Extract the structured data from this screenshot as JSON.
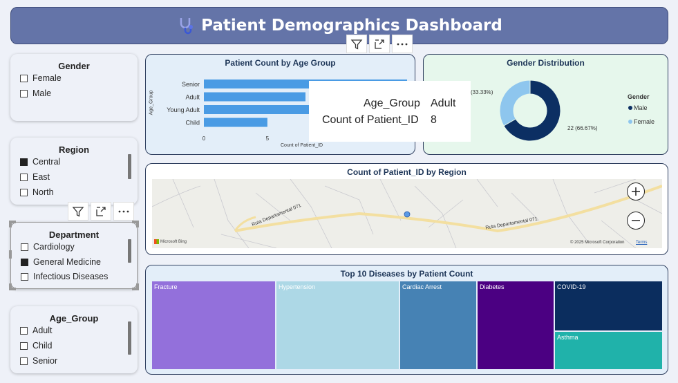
{
  "header": {
    "title": "Patient Demographics Dashboard",
    "icon": "stethoscope-icon"
  },
  "slicers": {
    "gender": {
      "title": "Gender",
      "items": [
        {
          "label": "Female",
          "checked": false
        },
        {
          "label": "Male",
          "checked": false
        }
      ]
    },
    "region": {
      "title": "Region",
      "items": [
        {
          "label": "Central",
          "checked": true
        },
        {
          "label": "East",
          "checked": false
        },
        {
          "label": "North",
          "checked": false
        }
      ]
    },
    "department": {
      "title": "Department",
      "items": [
        {
          "label": "Cardiology",
          "checked": false
        },
        {
          "label": "General Medicine",
          "checked": true
        },
        {
          "label": "Infectious Diseases",
          "checked": false
        }
      ]
    },
    "age_group": {
      "title": "Age_Group",
      "items": [
        {
          "label": "Adult",
          "checked": false
        },
        {
          "label": "Child",
          "checked": false
        },
        {
          "label": "Senior",
          "checked": false
        }
      ]
    }
  },
  "bar_chart": {
    "title": "Patient Count by Age Group",
    "xlabel": "Count of Patient_ID",
    "ylabel": "Age_Group",
    "ticks": [
      "0",
      "5"
    ]
  },
  "donut_chart": {
    "title": "Gender Distribution",
    "legend_title": "Gender",
    "label_female": "(33.33%)",
    "label_male": "22 (66.67%)",
    "legend": [
      "Male",
      "Female"
    ]
  },
  "tooltip": {
    "key1": "Age_Group",
    "val1": "Adult",
    "key2": "Count of Patient_ID",
    "val2": "8"
  },
  "map": {
    "title": "Count of Patient_ID by Region",
    "road1": "Ruta Departamental 071",
    "road2": "Ruta Departamental 071",
    "bing": "Microsoft Bing",
    "copyright": "© 2025 Microsoft Corporation",
    "terms": "Terms"
  },
  "treemap": {
    "title": "Top 10 Diseases by Patient Count",
    "cells": [
      "Fracture",
      "Hypertension",
      "Cardiac Arrest",
      "Diabetes",
      "COVID-19",
      "Asthma"
    ]
  },
  "colors": {
    "header": "#6474a8",
    "bar": "#4a9be4",
    "male": "#0c2f63",
    "female": "#8ec6ee"
  },
  "chart_data": [
    {
      "type": "bar",
      "title": "Patient Count by Age Group",
      "categories": [
        "Senior",
        "Adult",
        "Young Adult",
        "Child"
      ],
      "values": [
        16,
        8,
        15,
        5
      ],
      "xlabel": "Count of Patient_ID",
      "ylabel": "Age_Group",
      "xlim": [
        0,
        16
      ]
    },
    {
      "type": "pie",
      "title": "Gender Distribution",
      "categories": [
        "Male",
        "Female"
      ],
      "values": [
        22,
        11
      ],
      "percent": [
        66.67,
        33.33
      ]
    },
    {
      "type": "treemap",
      "title": "Top 10 Diseases by Patient Count",
      "categories": [
        "Fracture",
        "Hypertension",
        "Cardiac Arrest",
        "Diabetes",
        "COVID-19",
        "Asthma"
      ],
      "colors": [
        "#9370db",
        "#add8e6",
        "#4682b4",
        "#4b0082",
        "#0b2d5e",
        "#20b2aa"
      ]
    }
  ]
}
